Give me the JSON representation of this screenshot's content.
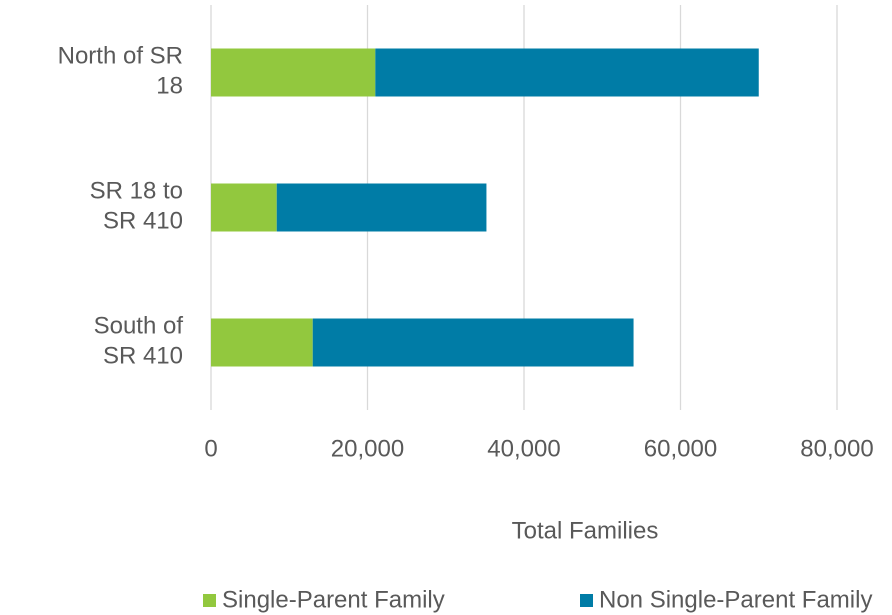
{
  "chart_data": {
    "type": "stacked-bar-horizontal",
    "x_label": "Total Families",
    "categories": [
      "North of SR\n18",
      "SR 18 to\nSR 410",
      "South of\nSR 410"
    ],
    "series": [
      {
        "name": "Single-Parent Family",
        "color": "#92c83e",
        "values": [
          21000,
          8400,
          13000
        ]
      },
      {
        "name": "Non Single-Parent Family",
        "color": "#007ca6",
        "values": [
          49000,
          26800,
          41000
        ]
      }
    ],
    "xlim": [
      0,
      80000
    ],
    "xticks": [
      0,
      {
        "value": 20000,
        "label": "20,000"
      },
      {
        "value": 40000,
        "label": "40,000"
      },
      {
        "value": 60000,
        "label": "60,000"
      },
      {
        "value": 80000,
        "label": "80,000"
      }
    ],
    "grid": true,
    "legend": "bottom"
  }
}
